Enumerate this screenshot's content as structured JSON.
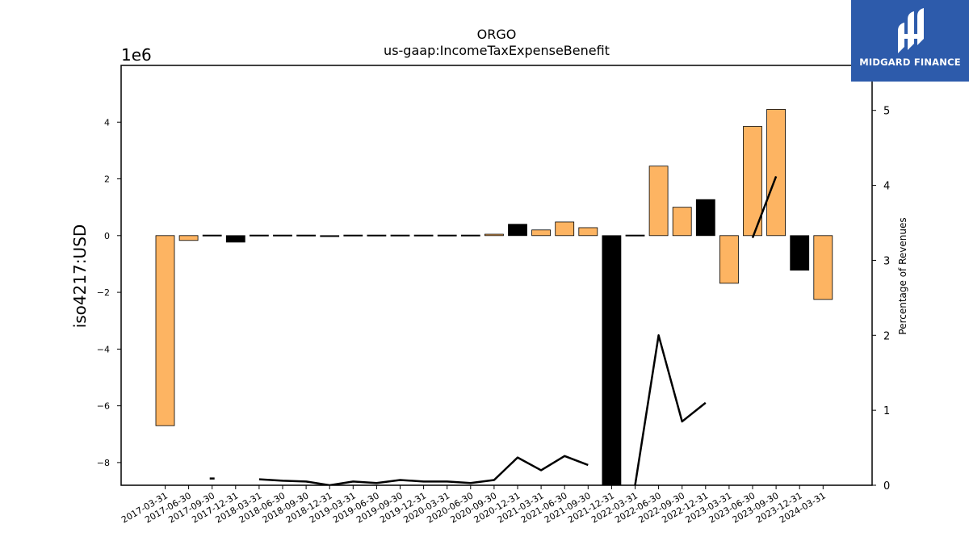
{
  "chart_data": {
    "type": "bar",
    "title": "ORGO",
    "subtitle": "us-gaap:IncomeTaxExpenseBenefit",
    "ylabel": "iso4217:USD",
    "y_offset_label": "1e6",
    "y2label": "Percentage of Revenues",
    "ylim": [
      -8.8,
      6.0
    ],
    "y_ticks": [
      -8,
      -6,
      -4,
      -2,
      0,
      2,
      4
    ],
    "y_tick_labels": [
      "−8",
      "−6",
      "−4",
      "−2",
      "0",
      "2",
      "4"
    ],
    "y2lim": [
      0,
      5.6
    ],
    "y2_ticks": [
      0,
      1,
      2,
      3,
      4,
      5
    ],
    "y2_tick_labels": [
      "0",
      "1",
      "2",
      "3",
      "4",
      "5"
    ],
    "categories": [
      "2017-03-31",
      "2017-06-30",
      "2017-09-30",
      "2017-12-31",
      "2018-03-31",
      "2018-06-30",
      "2018-09-30",
      "2018-12-31",
      "2019-03-31",
      "2019-06-30",
      "2019-09-30",
      "2019-12-31",
      "2020-03-31",
      "2020-06-30",
      "2020-09-30",
      "2020-12-31",
      "2021-03-31",
      "2021-06-30",
      "2021-09-30",
      "2021-12-31",
      "2022-03-31",
      "2022-06-30",
      "2022-09-30",
      "2022-12-31",
      "2023-03-31",
      "2023-06-30",
      "2023-09-30",
      "2023-12-31",
      "2024-03-31"
    ],
    "values": [
      -6.7,
      -0.17,
      0.02,
      -0.23,
      0.02,
      0.02,
      0.02,
      -0.02,
      0.02,
      0.02,
      0.02,
      0.02,
      0.02,
      0.02,
      0.05,
      0.4,
      0.2,
      0.48,
      0.28,
      -9.5,
      0.02,
      2.45,
      1.0,
      1.27,
      -1.68,
      3.85,
      4.45,
      -1.22,
      -2.25
    ],
    "bar_colors": [
      "#fdb462",
      "#fdb462",
      "#000000",
      "#000000",
      "#000000",
      "#000000",
      "#000000",
      "#000000",
      "#000000",
      "#000000",
      "#000000",
      "#000000",
      "#000000",
      "#000000",
      "#fdb462",
      "#000000",
      "#fdb462",
      "#fdb462",
      "#fdb462",
      "#000000",
      "#000000",
      "#fdb462",
      "#fdb462",
      "#000000",
      "#fdb462",
      "#fdb462",
      "#fdb462",
      "#000000",
      "#fdb462"
    ],
    "line_values": [
      null,
      null,
      0.09,
      null,
      0.08,
      0.06,
      0.05,
      0.0,
      0.05,
      0.03,
      0.07,
      0.05,
      0.05,
      0.03,
      0.07,
      0.37,
      0.2,
      0.39,
      0.27,
      null,
      0.0,
      2.0,
      0.85,
      1.1,
      null,
      3.3,
      4.12,
      null,
      null
    ],
    "grid": false
  },
  "logo": {
    "text": "MIDGARD FINANCE"
  }
}
